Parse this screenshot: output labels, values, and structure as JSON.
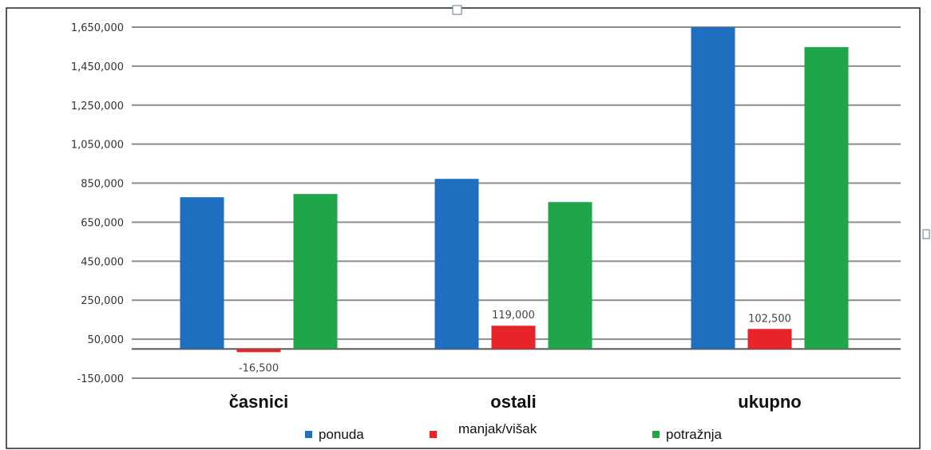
{
  "chart_data": {
    "type": "bar",
    "categories": [
      "časnici",
      "ostali",
      "ukupno"
    ],
    "series": [
      {
        "name": "ponuda",
        "color": "#1f6fc0",
        "values": [
          778000,
          872000,
          1650000
        ]
      },
      {
        "name": "manjak/višak",
        "color": "#e8242b",
        "values": [
          -16500,
          119000,
          102500
        ]
      },
      {
        "name": "potražnja",
        "color": "#1fa64a",
        "values": [
          794500,
          753000,
          1547500
        ]
      }
    ],
    "data_labels": {
      "manjak/višak": [
        "-16,500",
        "119,000",
        "102,500"
      ]
    },
    "y_ticks": [
      -150000,
      50000,
      250000,
      450000,
      650000,
      850000,
      1050000,
      1250000,
      1450000,
      1650000
    ],
    "y_tick_labels": [
      "-150,000",
      "50,000",
      "250,000",
      "450,000",
      "650,000",
      "850,000",
      "1,050,000",
      "1,250,000",
      "1,450,000",
      "1,650,000"
    ],
    "ylim": [
      -150000,
      1650000
    ],
    "grid": true,
    "legend_position": "bottom",
    "title": "",
    "xlabel": "",
    "ylabel": ""
  }
}
